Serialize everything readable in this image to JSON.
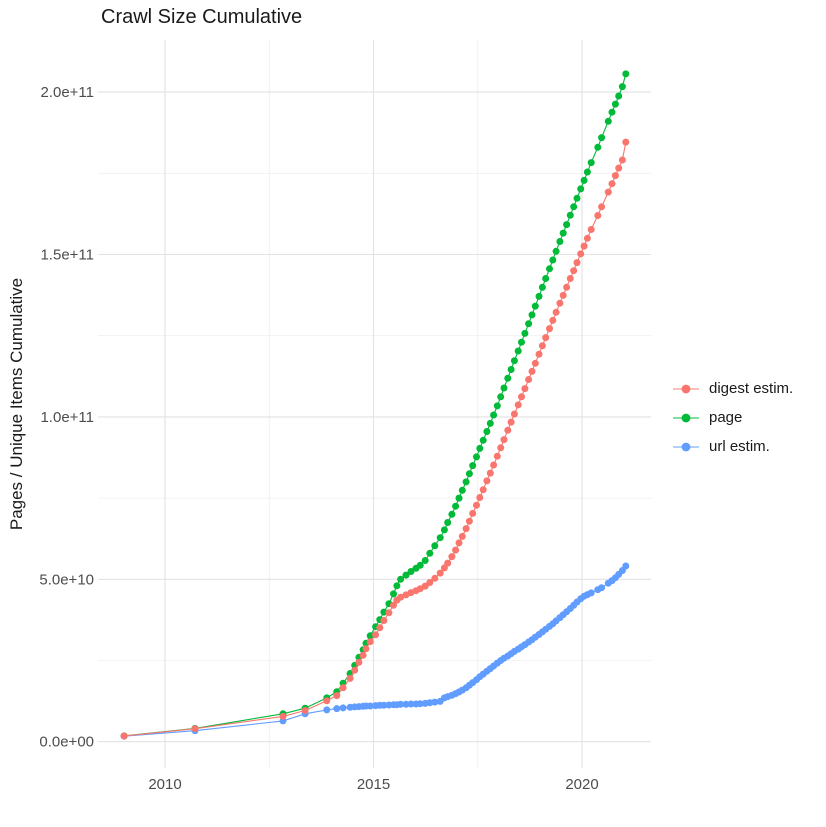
{
  "title": "Crawl Size Cumulative",
  "chart_data": {
    "type": "line",
    "title": "Crawl Size Cumulative",
    "xlabel": "",
    "ylabel": "Pages / Unique Items Cumulative",
    "legend_position": "right",
    "grid": true,
    "value_unit_note": "values_e9 are in units of 1e9 items",
    "xlim": [
      2008.4,
      2021.66
    ],
    "ylim_e9": [
      -8.5,
      216
    ],
    "x_major_ticks": [
      {
        "value": 2010,
        "label": "2010"
      },
      {
        "value": 2015,
        "label": "2015"
      },
      {
        "value": 2020,
        "label": "2020"
      }
    ],
    "x_minor_gridlines": [
      2012.5,
      2017.5
    ],
    "y_major_ticks": [
      {
        "value_e9": 0,
        "label": "0.0e+00"
      },
      {
        "value_e9": 50,
        "label": "5.0e+10"
      },
      {
        "value_e9": 100,
        "label": "1.0e+11"
      },
      {
        "value_e9": 150,
        "label": "1.5e+11"
      },
      {
        "value_e9": 200,
        "label": "2.0e+11"
      }
    ],
    "y_minor_gridlines_e9": [
      25,
      75,
      125,
      175
    ],
    "x": [
      2009.02,
      2010.72,
      2012.83,
      2013.36,
      2013.88,
      2014.12,
      2014.27,
      2014.44,
      2014.55,
      2014.65,
      2014.75,
      2014.82,
      2014.92,
      2015.05,
      2015.15,
      2015.25,
      2015.37,
      2015.48,
      2015.56,
      2015.65,
      2015.78,
      2015.9,
      2016.02,
      2016.12,
      2016.24,
      2016.35,
      2016.47,
      2016.6,
      2016.7,
      2016.78,
      2016.88,
      2016.97,
      2017.05,
      2017.13,
      2017.22,
      2017.3,
      2017.38,
      2017.47,
      2017.55,
      2017.63,
      2017.72,
      2017.8,
      2017.88,
      2017.97,
      2018.05,
      2018.13,
      2018.22,
      2018.3,
      2018.38,
      2018.47,
      2018.55,
      2018.63,
      2018.72,
      2018.8,
      2018.88,
      2018.97,
      2019.05,
      2019.13,
      2019.22,
      2019.3,
      2019.38,
      2019.47,
      2019.55,
      2019.63,
      2019.72,
      2019.8,
      2019.88,
      2019.97,
      2020.05,
      2020.13,
      2020.22,
      2020.38,
      2020.47,
      2020.63,
      2020.72,
      2020.8,
      2020.88,
      2020.97,
      2021.05
    ],
    "series": [
      {
        "name": "digest estim.",
        "color": "#F8766D",
        "values_e9": [
          1.75,
          4.0,
          7.8,
          9.6,
          12.6,
          14.2,
          16.6,
          19.5,
          22.0,
          24.4,
          26.6,
          28.6,
          30.8,
          32.9,
          35.1,
          37.3,
          39.7,
          42.0,
          43.6,
          44.5,
          45.2,
          45.9,
          46.5,
          47.1,
          47.9,
          49.0,
          50.3,
          51.9,
          53.5,
          55.0,
          57.0,
          59.0,
          61.2,
          63.2,
          65.6,
          67.9,
          70.3,
          72.8,
          75.2,
          77.6,
          80.3,
          82.7,
          85.2,
          87.9,
          90.5,
          93.0,
          95.9,
          98.4,
          100.9,
          103.7,
          106.2,
          108.7,
          111.5,
          114.0,
          116.5,
          119.3,
          121.9,
          124.4,
          127.2,
          129.7,
          132.2,
          135.0,
          137.4,
          139.9,
          142.6,
          145.0,
          147.5,
          150.2,
          152.6,
          155.0,
          157.7,
          162.0,
          164.7,
          169.2,
          171.8,
          174.3,
          176.6,
          179.1,
          184.6
        ]
      },
      {
        "name": "page",
        "color": "#00BA38",
        "values_e9": [
          1.8,
          4.1,
          8.6,
          10.3,
          13.5,
          15.4,
          18.0,
          21.0,
          23.5,
          26.0,
          28.3,
          30.3,
          32.6,
          35.4,
          37.6,
          39.9,
          42.5,
          45.5,
          48.0,
          50.0,
          51.3,
          52.4,
          53.4,
          54.3,
          55.8,
          58.0,
          60.3,
          62.8,
          65.2,
          67.5,
          70.0,
          72.5,
          75.0,
          77.4,
          80.0,
          82.5,
          85.0,
          87.7,
          90.3,
          92.8,
          95.5,
          98.0,
          100.6,
          103.4,
          106.2,
          108.9,
          111.9,
          114.6,
          117.3,
          120.3,
          123.0,
          125.7,
          128.7,
          131.4,
          134.1,
          137.1,
          139.9,
          142.6,
          145.6,
          148.3,
          151.0,
          154.0,
          156.6,
          159.2,
          162.1,
          164.7,
          167.3,
          170.2,
          172.8,
          175.4,
          178.3,
          183.0,
          186.0,
          191.0,
          193.8,
          196.3,
          198.8,
          201.7,
          205.6
        ]
      },
      {
        "name": "url estim.",
        "color": "#619CFF",
        "values_e9": [
          1.7,
          3.4,
          6.4,
          8.6,
          9.8,
          10.2,
          10.4,
          10.6,
          10.7,
          10.8,
          10.9,
          11.0,
          11.0,
          11.1,
          11.2,
          11.2,
          11.3,
          11.4,
          11.4,
          11.5,
          11.5,
          11.6,
          11.6,
          11.7,
          11.8,
          12.0,
          12.2,
          12.4,
          13.5,
          13.9,
          14.3,
          14.8,
          15.3,
          15.9,
          16.6,
          17.4,
          18.2,
          19.1,
          20.0,
          20.8,
          21.7,
          22.5,
          23.3,
          24.2,
          25.0,
          25.7,
          26.4,
          27.1,
          27.8,
          28.5,
          29.2,
          29.9,
          30.7,
          31.4,
          32.2,
          33.0,
          33.8,
          34.6,
          35.5,
          36.3,
          37.2,
          38.2,
          39.1,
          40.0,
          41.0,
          42.0,
          43.0,
          44.0,
          44.8,
          45.3,
          45.8,
          46.8,
          47.4,
          48.8,
          49.6,
          50.5,
          51.5,
          52.7,
          54.1
        ]
      }
    ]
  },
  "style": {
    "grid_major_color": "#E2E2E2",
    "grid_minor_color": "#EFEFEF",
    "tick_label_color": "#4D4D4D",
    "text_color": "#1a1a1a"
  }
}
